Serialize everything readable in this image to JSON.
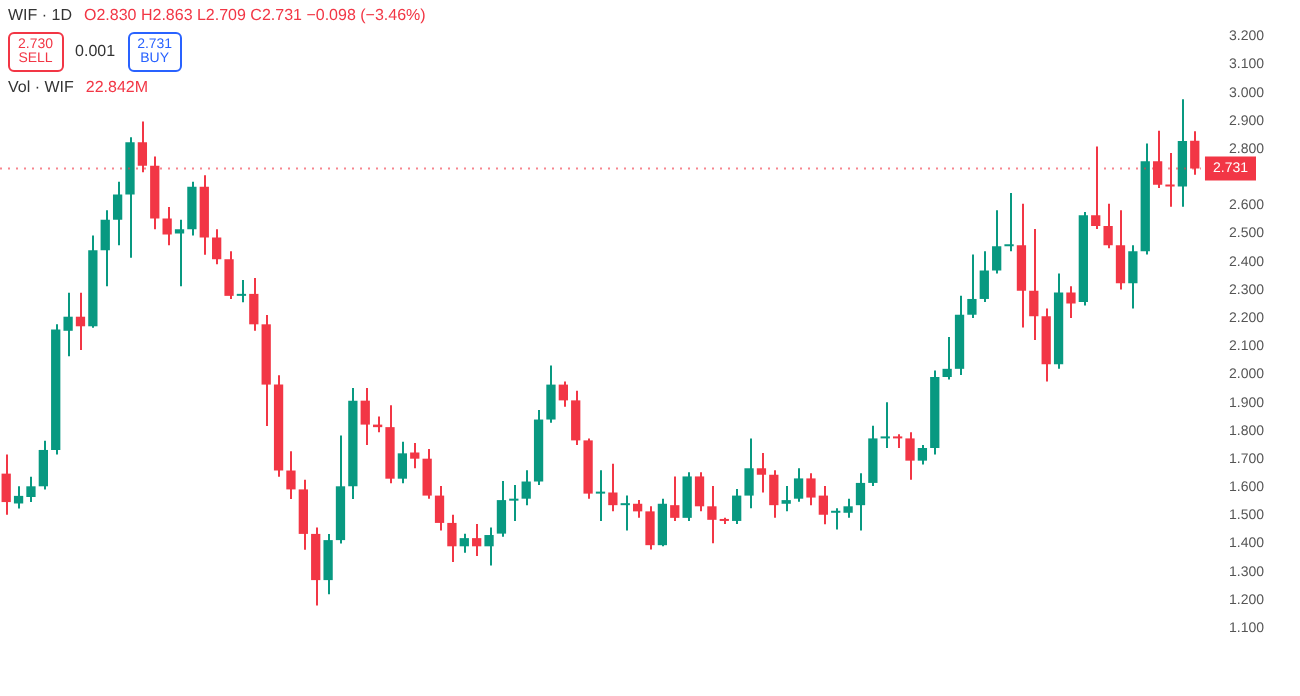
{
  "chart_data": {
    "type": "candlestick",
    "title": "WIF · 1D",
    "annotations": [
      "O2.830 H2.863 L2.709 C2.731 −0.098 (−3.46%)",
      "2.730",
      "SELL",
      "0.001",
      "2.731",
      "BUY",
      "Vol · WIF",
      "22.842M"
    ],
    "categories": [
      null,
      null,
      null,
      null,
      null,
      null,
      null,
      null,
      null,
      null,
      null,
      null,
      null,
      null,
      null,
      null,
      null,
      null,
      null,
      null,
      null,
      null,
      null,
      null,
      null,
      null,
      null,
      null,
      null,
      null,
      null,
      null,
      null,
      null,
      null,
      null,
      null,
      null,
      null,
      null,
      null,
      null,
      null,
      null,
      null,
      null,
      null,
      null,
      null,
      null,
      null,
      null,
      null,
      null,
      null,
      null,
      null,
      null,
      null,
      null,
      null,
      null,
      null,
      null,
      null,
      null,
      null,
      null,
      null,
      null,
      null,
      null,
      null,
      null,
      null,
      null,
      null,
      null,
      null,
      null,
      null,
      null,
      null,
      null,
      null,
      null,
      null,
      null,
      null,
      null,
      null,
      null,
      null,
      null,
      null,
      null,
      null
    ],
    "ohlc": [
      [
        1.648,
        1.716,
        1.502,
        1.547
      ],
      [
        1.542,
        1.603,
        1.524,
        1.569
      ],
      [
        1.565,
        1.637,
        1.547,
        1.603
      ],
      [
        1.603,
        1.765,
        1.592,
        1.732
      ],
      [
        1.732,
        2.178,
        1.716,
        2.16
      ],
      [
        2.155,
        2.29,
        2.065,
        2.205
      ],
      [
        2.205,
        2.29,
        2.087,
        2.171
      ],
      [
        2.171,
        2.493,
        2.166,
        2.441
      ],
      [
        2.441,
        2.583,
        2.313,
        2.549
      ],
      [
        2.549,
        2.684,
        2.459,
        2.639
      ],
      [
        2.639,
        2.842,
        2.414,
        2.824
      ],
      [
        2.824,
        2.898,
        2.718,
        2.741
      ],
      [
        2.741,
        2.774,
        2.515,
        2.554
      ],
      [
        2.554,
        2.594,
        2.459,
        2.497
      ],
      [
        2.5,
        2.549,
        2.313,
        2.515
      ],
      [
        2.515,
        2.684,
        2.493,
        2.666
      ],
      [
        2.666,
        2.707,
        2.425,
        2.486
      ],
      [
        2.486,
        2.515,
        2.391,
        2.409
      ],
      [
        2.409,
        2.437,
        2.268,
        2.279
      ],
      [
        2.279,
        2.335,
        2.256,
        2.286
      ],
      [
        2.286,
        2.342,
        2.155,
        2.178
      ],
      [
        2.178,
        2.211,
        1.817,
        1.964
      ],
      [
        1.964,
        1.997,
        1.637,
        1.659
      ],
      [
        1.659,
        1.727,
        1.558,
        1.592
      ],
      [
        1.592,
        1.626,
        1.378,
        1.434
      ],
      [
        1.434,
        1.457,
        1.18,
        1.27
      ],
      [
        1.27,
        1.434,
        1.22,
        1.412
      ],
      [
        1.412,
        1.783,
        1.4,
        1.603
      ],
      [
        1.603,
        1.952,
        1.558,
        1.907
      ],
      [
        1.907,
        1.952,
        1.75,
        1.822
      ],
      [
        1.822,
        1.851,
        1.795,
        1.813
      ],
      [
        1.813,
        1.891,
        1.614,
        1.63
      ],
      [
        1.63,
        1.761,
        1.614,
        1.72
      ],
      [
        1.723,
        1.757,
        1.667,
        1.701
      ],
      [
        1.701,
        1.735,
        1.559,
        1.57
      ],
      [
        1.57,
        1.604,
        1.446,
        1.473
      ],
      [
        1.473,
        1.502,
        1.334,
        1.39
      ],
      [
        1.39,
        1.435,
        1.367,
        1.419
      ],
      [
        1.419,
        1.469,
        1.356,
        1.39
      ],
      [
        1.39,
        1.457,
        1.322,
        1.43
      ],
      [
        1.435,
        1.622,
        1.424,
        1.554
      ],
      [
        1.552,
        1.608,
        1.48,
        1.559
      ],
      [
        1.559,
        1.66,
        1.536,
        1.62
      ],
      [
        1.62,
        1.874,
        1.608,
        1.84
      ],
      [
        1.84,
        2.032,
        1.829,
        1.964
      ],
      [
        1.964,
        1.975,
        1.885,
        1.908
      ],
      [
        1.908,
        1.942,
        1.75,
        1.766
      ],
      [
        1.766,
        1.773,
        1.559,
        1.577
      ],
      [
        1.577,
        1.66,
        1.48,
        1.581
      ],
      [
        1.581,
        1.683,
        1.514,
        1.536
      ],
      [
        1.536,
        1.57,
        1.446,
        1.541
      ],
      [
        1.541,
        1.554,
        1.491,
        1.514
      ],
      [
        1.514,
        1.532,
        1.379,
        1.394
      ],
      [
        1.394,
        1.559,
        1.39,
        1.541
      ],
      [
        1.536,
        1.638,
        1.48,
        1.491
      ],
      [
        1.491,
        1.653,
        1.48,
        1.638
      ],
      [
        1.638,
        1.653,
        1.514,
        1.532
      ],
      [
        1.532,
        1.604,
        1.401,
        1.484
      ],
      [
        1.484,
        1.491,
        1.469,
        1.48
      ],
      [
        1.48,
        1.593,
        1.469,
        1.57
      ],
      [
        1.57,
        1.773,
        1.525,
        1.667
      ],
      [
        1.667,
        1.721,
        1.581,
        1.644
      ],
      [
        1.644,
        1.66,
        1.491,
        1.536
      ],
      [
        1.541,
        1.604,
        1.514,
        1.554
      ],
      [
        1.559,
        1.667,
        1.548,
        1.631
      ],
      [
        1.631,
        1.649,
        1.536,
        1.563
      ],
      [
        1.57,
        1.604,
        1.468,
        1.502
      ],
      [
        1.509,
        1.525,
        1.45,
        1.514
      ],
      [
        1.509,
        1.559,
        1.491,
        1.532
      ],
      [
        1.536,
        1.649,
        1.446,
        1.615
      ],
      [
        1.615,
        1.818,
        1.604,
        1.773
      ],
      [
        1.773,
        1.901,
        1.739,
        1.779
      ],
      [
        1.779,
        1.788,
        1.739,
        1.773
      ],
      [
        1.773,
        1.795,
        1.626,
        1.694
      ],
      [
        1.694,
        1.75,
        1.68,
        1.739
      ],
      [
        1.739,
        2.014,
        1.716,
        1.991
      ],
      [
        1.991,
        2.133,
        1.982,
        2.02
      ],
      [
        2.02,
        2.279,
        1.998,
        2.212
      ],
      [
        2.212,
        2.426,
        2.2,
        2.268
      ],
      [
        2.268,
        2.437,
        2.257,
        2.369
      ],
      [
        2.369,
        2.583,
        2.358,
        2.455
      ],
      [
        2.455,
        2.644,
        2.437,
        2.459
      ],
      [
        2.459,
        2.606,
        2.167,
        2.297
      ],
      [
        2.297,
        2.516,
        2.122,
        2.207
      ],
      [
        2.207,
        2.234,
        1.975,
        2.036
      ],
      [
        2.036,
        2.358,
        2.02,
        2.291
      ],
      [
        2.291,
        2.313,
        2.2,
        2.252
      ],
      [
        2.257,
        2.577,
        2.245,
        2.565
      ],
      [
        2.565,
        2.809,
        2.516,
        2.527
      ],
      [
        2.527,
        2.606,
        2.448,
        2.459
      ],
      [
        2.459,
        2.583,
        2.302,
        2.324
      ],
      [
        2.324,
        2.459,
        2.234,
        2.437
      ],
      [
        2.437,
        2.82,
        2.426,
        2.757
      ],
      [
        2.757,
        2.865,
        2.662,
        2.673
      ],
      [
        2.673,
        2.786,
        2.595,
        2.667
      ],
      [
        2.667,
        2.977,
        2.595,
        2.829
      ],
      [
        2.83,
        2.863,
        2.709,
        2.731
      ]
    ],
    "colors": [
      "#f23645",
      "#089981",
      "#089981",
      "#089981",
      "#089981",
      "#089981",
      "#f23645",
      "#089981",
      "#089981",
      "#089981",
      "#089981",
      "#f23645",
      "#f23645",
      "#f23645",
      "#089981",
      "#089981",
      "#f23645",
      "#f23645",
      "#f23645",
      "#089981",
      "#f23645",
      "#f23645",
      "#f23645",
      "#f23645",
      "#f23645",
      "#f23645",
      "#089981",
      "#089981",
      "#089981",
      "#f23645",
      "#f23645",
      "#f23645",
      "#089981",
      "#f23645",
      "#f23645",
      "#f23645",
      "#f23645",
      "#089981",
      "#f23645",
      "#089981",
      "#089981",
      "#089981",
      "#089981",
      "#089981",
      "#089981",
      "#f23645",
      "#f23645",
      "#f23645",
      "#089981",
      "#f23645",
      "#089981",
      "#f23645",
      "#f23645",
      "#089981",
      "#f23645",
      "#089981",
      "#f23645",
      "#f23645",
      "#f23645",
      "#089981",
      "#089981",
      "#f23645",
      "#f23645",
      "#089981",
      "#089981",
      "#f23645",
      "#f23645",
      "#089981",
      "#089981",
      "#089981",
      "#089981",
      "#089981",
      "#f23645",
      "#f23645",
      "#089981",
      "#089981",
      "#089981",
      "#089981",
      "#089981",
      "#089981",
      "#089981",
      "#089981",
      "#f23645",
      "#f23645",
      "#f23645",
      "#089981",
      "#f23645",
      "#089981",
      "#f23645",
      "#f23645",
      "#f23645",
      "#089981",
      "#089981",
      "#f23645",
      "#f23645",
      "#089981",
      "#f23645"
    ],
    "ylim": [
      1.1,
      3.2
    ],
    "yticks": [
      {
        "value": 1.1,
        "label": "1.100"
      },
      {
        "value": 1.2,
        "label": "1.200"
      },
      {
        "value": 1.3,
        "label": "1.300"
      },
      {
        "value": 1.4,
        "label": "1.400"
      },
      {
        "value": 1.5,
        "label": "1.500"
      },
      {
        "value": 1.6,
        "label": "1.600"
      },
      {
        "value": 1.7,
        "label": "1.700"
      },
      {
        "value": 1.8,
        "label": "1.800"
      },
      {
        "value": 1.9,
        "label": "1.900"
      },
      {
        "value": 2.0,
        "label": "2.000"
      },
      {
        "value": 2.1,
        "label": "2.100"
      },
      {
        "value": 2.2,
        "label": "2.200"
      },
      {
        "value": 2.3,
        "label": "2.300"
      },
      {
        "value": 2.4,
        "label": "2.400"
      },
      {
        "value": 2.5,
        "label": "2.500"
      },
      {
        "value": 2.6,
        "label": "2.600"
      },
      {
        "value": 2.8,
        "label": "2.800"
      },
      {
        "value": 2.9,
        "label": "2.900"
      },
      {
        "value": 3.0,
        "label": "3.000"
      },
      {
        "value": 3.1,
        "label": "3.100"
      },
      {
        "value": 3.2,
        "label": "3.200"
      }
    ],
    "ref_lines": [
      {
        "axis": "y",
        "value": 2.731,
        "label": "2.731",
        "color": "#f23645",
        "line_style": "dotted"
      }
    ],
    "tick_labels": "y",
    "grid": false,
    "legend": false
  }
}
